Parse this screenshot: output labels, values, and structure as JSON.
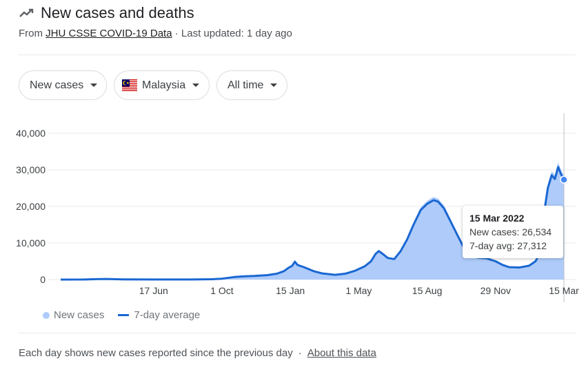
{
  "header": {
    "icon": "trending-line-icon",
    "title": "New cases and deaths",
    "source_prefix": "From ",
    "source_link": "JHU CSSE COVID-19 Data",
    "updated": " · Last updated: 1 day ago"
  },
  "filters": {
    "metric": "New cases",
    "country": "Malaysia",
    "country_flag": "malaysia-flag-icon",
    "range": "All time"
  },
  "tooltip": {
    "date": "15 Mar 2022",
    "new_cases_label": "New cases: ",
    "new_cases": "26,534",
    "avg_label": "7-day avg: ",
    "avg": "27,312"
  },
  "legend": {
    "cases": "New cases",
    "avg": "7-day average"
  },
  "footer": {
    "note": "Each day shows new cases reported since the previous day",
    "link": "About this data"
  },
  "colors": {
    "area": "#aecbfa",
    "line": "#1967d2",
    "grid": "#e8eaed",
    "axis_text": "#3c4043"
  },
  "chart_data": {
    "type": "area",
    "title": "",
    "xlabel": "",
    "ylabel": "",
    "ylim": [
      0,
      40000
    ],
    "yticks": [
      0,
      10000,
      20000,
      30000,
      40000
    ],
    "ytick_labels": [
      "0",
      "10,000",
      "20,000",
      "30,000",
      "40,000"
    ],
    "grid": true,
    "legend_position": "bottom-left",
    "x_tick_labels": [
      "17 Jun",
      "1 Oct",
      "15 Jan",
      "1 May",
      "15 Aug",
      "29 Nov",
      "15 Mar"
    ],
    "x_tick_dates": [
      "2020-06-17",
      "2020-10-01",
      "2021-01-15",
      "2021-05-01",
      "2021-08-15",
      "2021-11-29",
      "2022-03-15"
    ],
    "x_start": "2020-01-25",
    "x_end": "2022-03-15",
    "series": [
      {
        "name": "7-day average",
        "points": [
          [
            "2020-01-25",
            0
          ],
          [
            "2020-03-01",
            10
          ],
          [
            "2020-03-20",
            120
          ],
          [
            "2020-04-05",
            170
          ],
          [
            "2020-05-01",
            60
          ],
          [
            "2020-06-17",
            10
          ],
          [
            "2020-08-15",
            15
          ],
          [
            "2020-09-15",
            100
          ],
          [
            "2020-10-01",
            250
          ],
          [
            "2020-10-20",
            700
          ],
          [
            "2020-11-05",
            900
          ],
          [
            "2020-11-20",
            1000
          ],
          [
            "2020-12-10",
            1200
          ],
          [
            "2020-12-25",
            1600
          ],
          [
            "2021-01-05",
            2300
          ],
          [
            "2021-01-12",
            3200
          ],
          [
            "2021-01-18",
            3800
          ],
          [
            "2021-01-22",
            4900
          ],
          [
            "2021-01-26",
            4000
          ],
          [
            "2021-02-05",
            3400
          ],
          [
            "2021-02-20",
            2300
          ],
          [
            "2021-03-05",
            1700
          ],
          [
            "2021-03-25",
            1300
          ],
          [
            "2021-04-10",
            1600
          ],
          [
            "2021-04-25",
            2400
          ],
          [
            "2021-05-10",
            3600
          ],
          [
            "2021-05-20",
            5000
          ],
          [
            "2021-05-27",
            7000
          ],
          [
            "2021-06-01",
            7800
          ],
          [
            "2021-06-08",
            6900
          ],
          [
            "2021-06-15",
            5900
          ],
          [
            "2021-06-25",
            5600
          ],
          [
            "2021-07-05",
            7800
          ],
          [
            "2021-07-15",
            11000
          ],
          [
            "2021-07-25",
            15000
          ],
          [
            "2021-08-05",
            19000
          ],
          [
            "2021-08-15",
            20700
          ],
          [
            "2021-08-25",
            21700
          ],
          [
            "2021-09-01",
            21300
          ],
          [
            "2021-09-10",
            19500
          ],
          [
            "2021-09-20",
            16000
          ],
          [
            "2021-09-30",
            12500
          ],
          [
            "2021-10-10",
            9000
          ],
          [
            "2021-10-20",
            7000
          ],
          [
            "2021-11-01",
            6000
          ],
          [
            "2021-11-15",
            5800
          ],
          [
            "2021-11-29",
            5000
          ],
          [
            "2021-12-10",
            4000
          ],
          [
            "2021-12-20",
            3400
          ],
          [
            "2022-01-05",
            3300
          ],
          [
            "2022-01-20",
            3800
          ],
          [
            "2022-01-30",
            5000
          ],
          [
            "2022-02-05",
            7000
          ],
          [
            "2022-02-12",
            18000
          ],
          [
            "2022-02-18",
            25000
          ],
          [
            "2022-02-24",
            28500
          ],
          [
            "2022-03-01",
            27500
          ],
          [
            "2022-03-06",
            30800
          ],
          [
            "2022-03-10",
            29000
          ],
          [
            "2022-03-15",
            27312
          ]
        ]
      }
    ],
    "selected": {
      "date": "2022-03-15",
      "new_cases": 26534,
      "avg": 27312
    }
  }
}
